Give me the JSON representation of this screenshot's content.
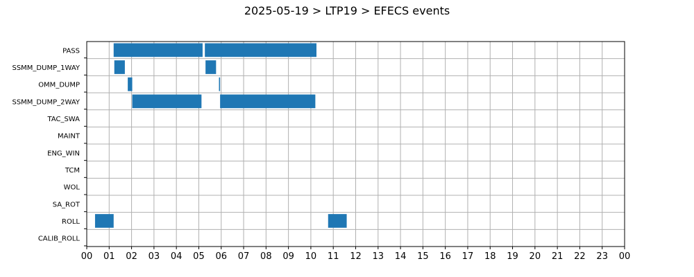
{
  "chart_data": {
    "type": "bar",
    "orientation": "horizontal-timeline",
    "title": "2025-05-19 > LTP19 > EFECS events",
    "xlabel": "",
    "ylabel": "",
    "xlim": [
      0,
      24
    ],
    "grid": true,
    "x_tick_labels": [
      "00",
      "01",
      "02",
      "03",
      "04",
      "05",
      "06",
      "07",
      "08",
      "09",
      "10",
      "11",
      "12",
      "13",
      "14",
      "15",
      "16",
      "17",
      "18",
      "19",
      "20",
      "21",
      "22",
      "23",
      "00"
    ],
    "categories": [
      "PASS",
      "SSMM_DUMP_1WAY",
      "OMM_DUMP",
      "SSMM_DUMP_2WAY",
      "TAC_SWA",
      "MAINT",
      "ENG_WIN",
      "TCM",
      "WOL",
      "SA_ROT",
      "ROLL",
      "CALIB_ROLL"
    ],
    "bar_color": "#1f77b4",
    "events": [
      {
        "category": "PASS",
        "start": 1.2,
        "end": 5.17
      },
      {
        "category": "PASS",
        "start": 5.27,
        "end": 10.25
      },
      {
        "category": "SSMM_DUMP_1WAY",
        "start": 1.23,
        "end": 1.7
      },
      {
        "category": "SSMM_DUMP_1WAY",
        "start": 5.3,
        "end": 5.77
      },
      {
        "category": "OMM_DUMP",
        "start": 1.83,
        "end": 2.03
      },
      {
        "category": "OMM_DUMP",
        "start": 5.9,
        "end": 5.95
      },
      {
        "category": "SSMM_DUMP_2WAY",
        "start": 2.03,
        "end": 5.12
      },
      {
        "category": "SSMM_DUMP_2WAY",
        "start": 5.95,
        "end": 10.2
      },
      {
        "category": "ROLL",
        "start": 0.37,
        "end": 1.2
      },
      {
        "category": "ROLL",
        "start": 10.77,
        "end": 11.6
      }
    ]
  }
}
